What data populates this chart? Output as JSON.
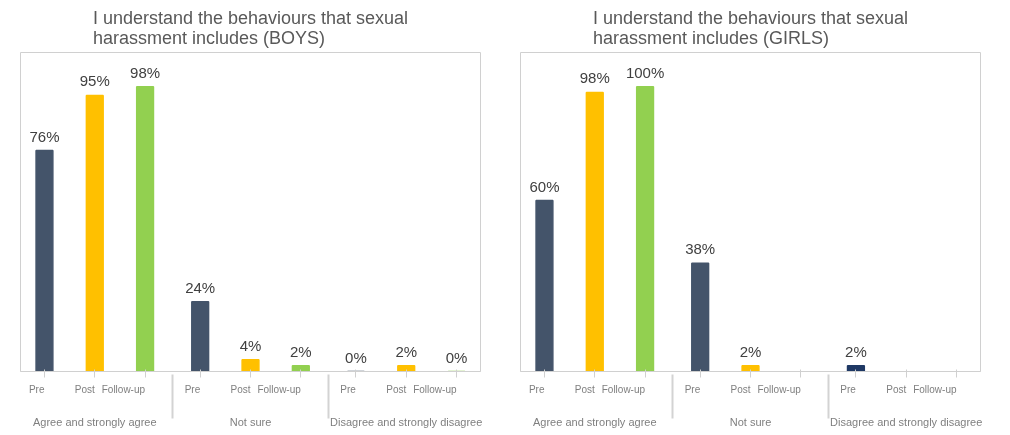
{
  "chart_data": [
    {
      "type": "bar",
      "title": "I understand the behaviours that sexual harassment includes (BOYS)",
      "categories": [
        "Agree and strongly agree",
        "Not sure",
        "Disagree and strongly disagree"
      ],
      "legend": false,
      "grid": false,
      "series": [
        {
          "name": "Pre",
          "colors": [
            "#44546a",
            "#44546a",
            "#44546a"
          ],
          "values": [
            76,
            24,
            0
          ],
          "value_labels": [
            "76%",
            "24%",
            "0%"
          ]
        },
        {
          "name": "Post",
          "colors": [
            "#ffc000",
            "#ffc000",
            "#ffc000"
          ],
          "values": [
            95,
            4,
            2
          ],
          "value_labels": [
            "95%",
            "4%",
            "2%"
          ]
        },
        {
          "name": "Follow-up",
          "colors": [
            "#92d050",
            "#92d050",
            "#92d050"
          ],
          "values": [
            98,
            2,
            0
          ],
          "value_labels": [
            "98%",
            "2%",
            "0%"
          ]
        }
      ]
    },
    {
      "type": "bar",
      "title": "I understand the behaviours that sexual harassment includes (GIRLS)",
      "categories": [
        "Agree and strongly agree",
        "Not sure",
        "Disagree and strongly disagree"
      ],
      "legend": false,
      "grid": false,
      "series": [
        {
          "name": "Pre",
          "colors": [
            "#44546a",
            "#44546a",
            "#1f3864"
          ],
          "values": [
            60,
            38,
            2
          ],
          "value_labels": [
            "60%",
            "38%",
            "2%"
          ]
        },
        {
          "name": "Post",
          "colors": [
            "#ffc000",
            "#ffc000",
            "#ffc000"
          ],
          "values": [
            98,
            2,
            null
          ],
          "value_labels": [
            "98%",
            "2%",
            null
          ]
        },
        {
          "name": "Follow-up",
          "colors": [
            "#92d050",
            "#92d050",
            "#92d050"
          ],
          "values": [
            100,
            null,
            null
          ],
          "value_labels": [
            "100%",
            null,
            null
          ]
        }
      ]
    }
  ]
}
